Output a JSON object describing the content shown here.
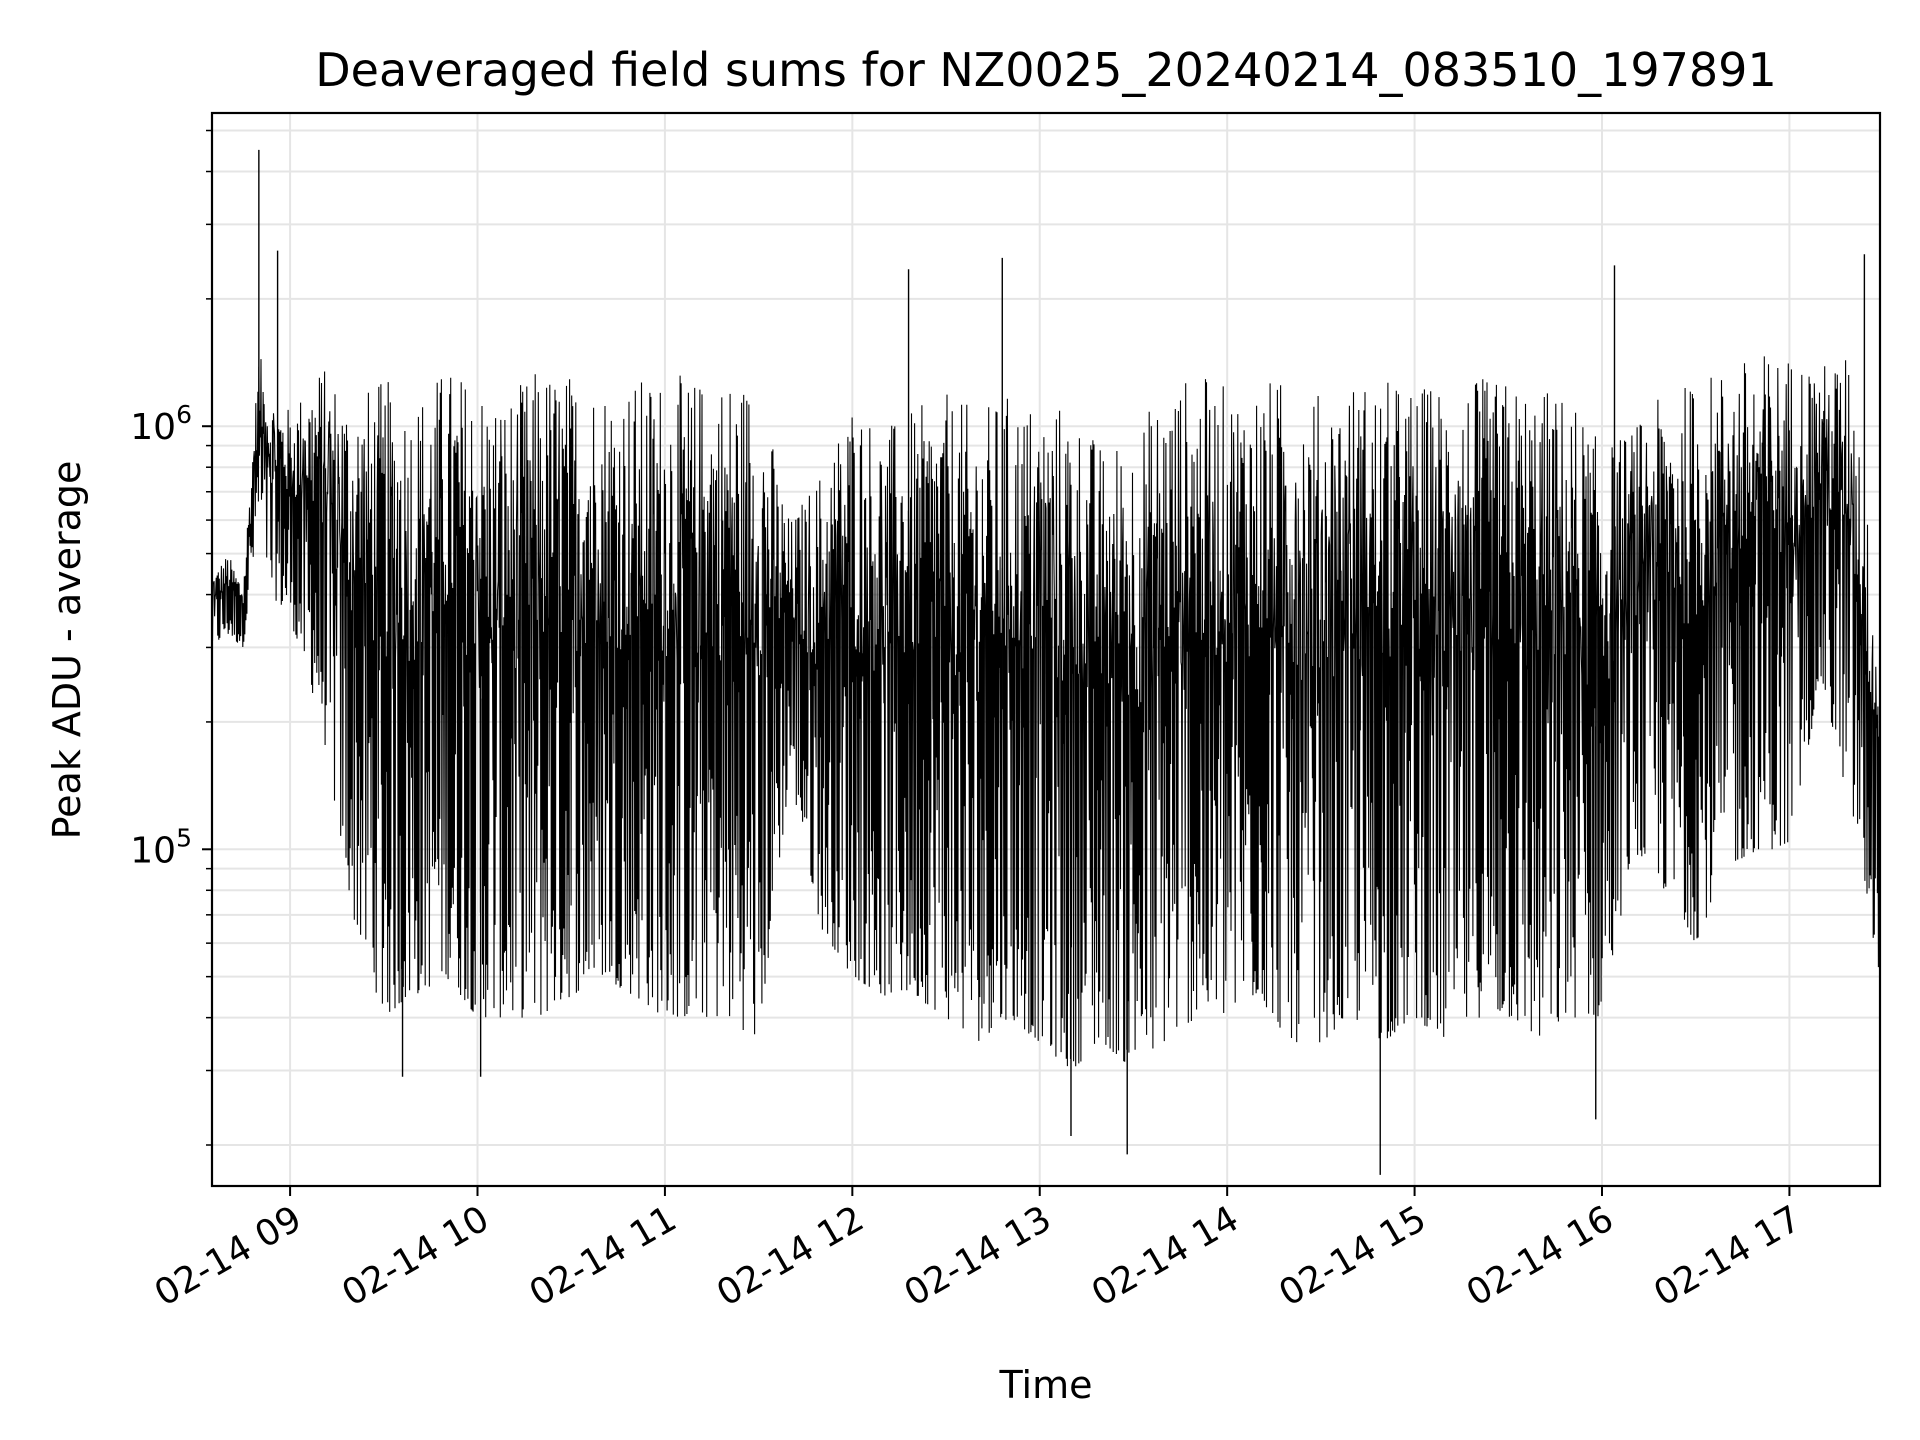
{
  "chart_data": {
    "type": "line",
    "title": "Deaveraged field sums for NZ0025_20240214_083510_197891",
    "xlabel": "Time",
    "ylabel": "Peak ADU - average",
    "x_tick_labels": [
      "02-14 09",
      "02-14 10",
      "02-14 11",
      "02-14 12",
      "02-14 13",
      "02-14 14",
      "02-14 15",
      "02-14 16",
      "02-14 17"
    ],
    "y_tick_labels": [
      {
        "value": 100000,
        "base": "10",
        "exp": "5"
      },
      {
        "value": 1000000,
        "base": "10",
        "exp": "6"
      }
    ],
    "xlim": [
      "2024-02-14 08:35",
      "2024-02-14 17:29"
    ],
    "ylim": [
      16000,
      5500000
    ],
    "yscale": "log",
    "grid": true,
    "legend": "none",
    "line_color": "#000000",
    "grid_color": "#e5e5e5",
    "series": [
      {
        "x": [
          "2024-02-14 08:35",
          "2024-02-14 08:40",
          "2024-02-14 08:45",
          "2024-02-14 08:50",
          "2024-02-14 08:54",
          "2024-02-14 09:00",
          "2024-02-14 09:10",
          "2024-02-14 09:20",
          "2024-02-14 09:30",
          "2024-02-14 09:40",
          "2024-02-14 09:50",
          "2024-02-14 10:00",
          "2024-02-14 10:10",
          "2024-02-14 10:20",
          "2024-02-14 10:30",
          "2024-02-14 10:40",
          "2024-02-14 10:50",
          "2024-02-14 11:00",
          "2024-02-14 11:10",
          "2024-02-14 11:20",
          "2024-02-14 11:30",
          "2024-02-14 11:40",
          "2024-02-14 11:50",
          "2024-02-14 12:00",
          "2024-02-14 12:10",
          "2024-02-14 12:20",
          "2024-02-14 12:30",
          "2024-02-14 12:40",
          "2024-02-14 12:50",
          "2024-02-14 13:00",
          "2024-02-14 13:10",
          "2024-02-14 13:20",
          "2024-02-14 13:30",
          "2024-02-14 13:40",
          "2024-02-14 13:50",
          "2024-02-14 14:00",
          "2024-02-14 14:10",
          "2024-02-14 14:20",
          "2024-02-14 14:30",
          "2024-02-14 14:40",
          "2024-02-14 14:50",
          "2024-02-14 15:00",
          "2024-02-14 15:10",
          "2024-02-14 15:20",
          "2024-02-14 15:30",
          "2024-02-14 15:40",
          "2024-02-14 15:50",
          "2024-02-14 16:00",
          "2024-02-14 16:10",
          "2024-02-14 16:20",
          "2024-02-14 16:30",
          "2024-02-14 16:40",
          "2024-02-14 16:50",
          "2024-02-14 17:00",
          "2024-02-14 17:10",
          "2024-02-14 17:20",
          "2024-02-14 17:29"
        ],
        "y_high": [
          450000,
          500000,
          430000,
          1500000,
          1200000,
          1100000,
          1400000,
          1200000,
          1300000,
          1200000,
          1400000,
          1300000,
          1200000,
          1400000,
          1350000,
          1300000,
          1300000,
          1350000,
          1300000,
          1350000,
          1300000,
          600000,
          800000,
          1200000,
          1000000,
          1100000,
          1200000,
          1100000,
          1200000,
          1150000,
          1150000,
          900000,
          1000000,
          1250000,
          1350000,
          1250000,
          1300000,
          1300000,
          1200000,
          1300000,
          1300000,
          1250000,
          1300000,
          1300000,
          1300000,
          1250000,
          1200000,
          900000,
          1000000,
          1200000,
          1300000,
          1400000,
          1500000,
          1500000,
          1400000,
          1500000,
          300000
        ],
        "y_low": [
          300000,
          320000,
          300000,
          600000,
          400000,
          350000,
          200000,
          70000,
          40000,
          45000,
          50000,
          40000,
          40000,
          40000,
          45000,
          50000,
          45000,
          40000,
          40000,
          40000,
          35000,
          150000,
          65000,
          50000,
          45000,
          45000,
          40000,
          35000,
          40000,
          35000,
          30000,
          35000,
          30000,
          35000,
          40000,
          40000,
          45000,
          35000,
          35000,
          40000,
          35000,
          40000,
          35000,
          40000,
          40000,
          35000,
          40000,
          40000,
          100000,
          80000,
          60000,
          90000,
          100000,
          100000,
          250000,
          120000,
          50000
        ],
        "spikes": [
          {
            "x": "2024-02-14 08:50",
            "y": 4500000
          },
          {
            "x": "2024-02-14 08:56",
            "y": 2600000
          },
          {
            "x": "2024-02-14 12:18",
            "y": 2350000
          },
          {
            "x": "2024-02-14 12:48",
            "y": 2500000
          },
          {
            "x": "2024-02-14 16:04",
            "y": 2400000
          },
          {
            "x": "2024-02-14 17:24",
            "y": 2550000
          },
          {
            "x": "2024-02-14 13:28",
            "y": 19000
          },
          {
            "x": "2024-02-14 14:49",
            "y": 17000
          },
          {
            "x": "2024-02-14 09:36",
            "y": 29000
          },
          {
            "x": "2024-02-14 10:01",
            "y": 29000
          },
          {
            "x": "2024-02-14 13:10",
            "y": 21000
          },
          {
            "x": "2024-02-14 15:58",
            "y": 23000
          }
        ]
      }
    ]
  }
}
